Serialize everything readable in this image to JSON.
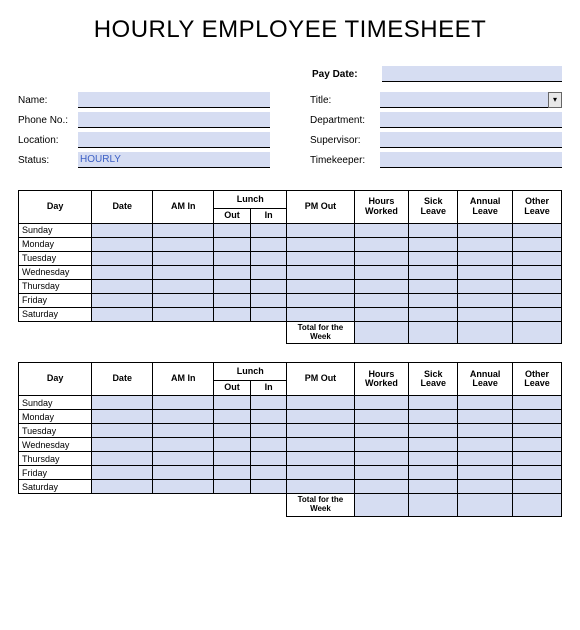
{
  "title": "HOURLY EMPLOYEE TIMESHEET",
  "left_fields": {
    "name_label": "Name:",
    "name_value": "",
    "phone_label": "Phone No.:",
    "phone_value": "",
    "location_label": "Location:",
    "location_value": "",
    "status_label": "Status:",
    "status_value": "HOURLY"
  },
  "right_fields": {
    "paydate_label": "Pay Date:",
    "paydate_value": "",
    "title_label": "Title:",
    "title_value": "",
    "department_label": "Department:",
    "department_value": "",
    "supervisor_label": "Supervisor:",
    "supervisor_value": "",
    "timekeeper_label": "Timekeeper:",
    "timekeeper_value": ""
  },
  "table": {
    "headers": {
      "day": "Day",
      "date": "Date",
      "am_in": "AM In",
      "lunch": "Lunch",
      "lunch_out": "Out",
      "lunch_in": "In",
      "pm_out": "PM Out",
      "hours_worked": "Hours Worked",
      "sick_leave": "Sick Leave",
      "annual_leave": "Annual Leave",
      "other_leave": "Other Leave"
    },
    "days": [
      "Sunday",
      "Monday",
      "Tuesday",
      "Wednesday",
      "Thursday",
      "Friday",
      "Saturday"
    ],
    "total_label": "Total for the Week"
  },
  "colors": {
    "fill": "#d6ddf2",
    "border": "#000000",
    "bg": "#ffffff",
    "value_text": "#3b5fc4"
  }
}
